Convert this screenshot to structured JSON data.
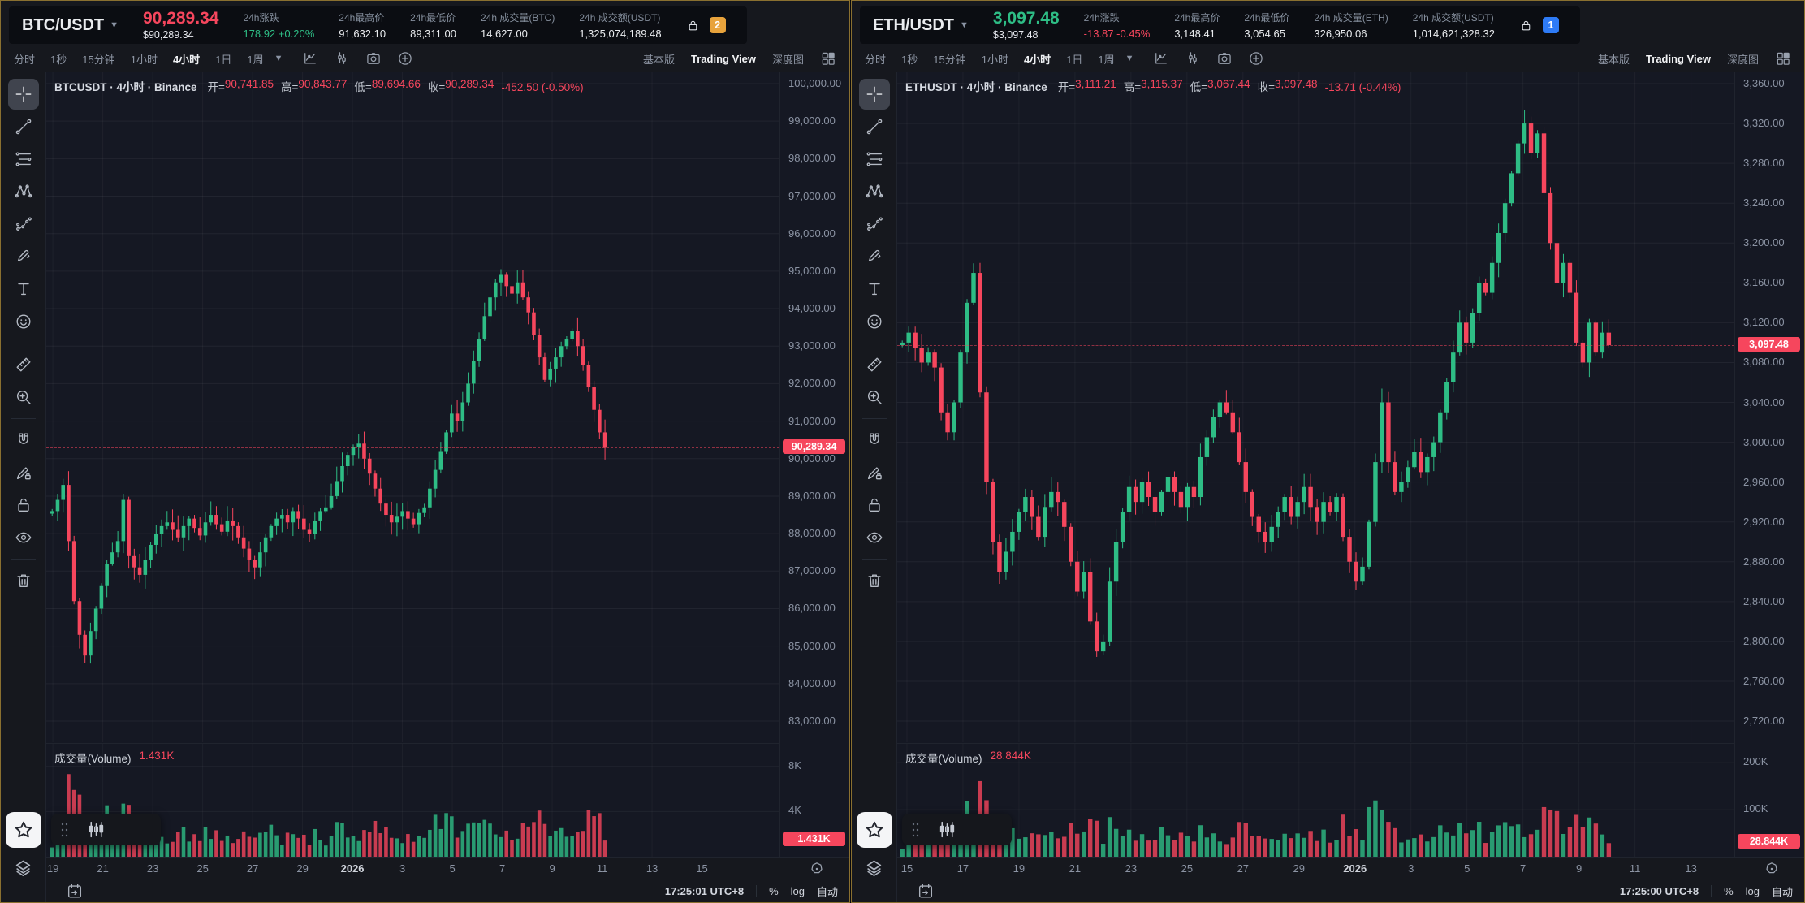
{
  "colors": {
    "up": "#2ebd85",
    "down": "#f6465d",
    "badge_btc": "#e8a33c",
    "badge_eth": "#2e7bf6"
  },
  "panels": [
    {
      "id": "btc",
      "header": {
        "symbol": "BTC/USDT",
        "price": "90,289.34",
        "price_dir": "down",
        "price_usd": "$90,289.34",
        "stats": [
          {
            "label": "24h涨跌",
            "value": "178.92 +0.20%",
            "dir": "up"
          },
          {
            "label": "24h最高价",
            "value": "91,632.10",
            "dir": ""
          },
          {
            "label": "24h最低价",
            "value": "89,311.00",
            "dir": ""
          },
          {
            "label": "24h 成交量(BTC)",
            "value": "14,627.00",
            "dir": ""
          },
          {
            "label": "24h 成交额(USDT)",
            "value": "1,325,074,189.48",
            "dir": ""
          }
        ],
        "badge": {
          "text": "2",
          "color": "#e8a33c"
        }
      },
      "toolbar": {
        "timeframes": [
          "分时",
          "1秒",
          "15分钟",
          "1小时",
          "4小时",
          "1日",
          "1周"
        ],
        "active_timeframe": "4小时",
        "icons": [
          "indicators",
          "candle-style",
          "camera",
          "plus-circle"
        ],
        "view_basic": "基本版",
        "view_tv": "Trading View",
        "view_depth": "深度图",
        "active_view": "Trading View"
      },
      "sidebar": {
        "tools": [
          "crosshair",
          "trend-line",
          "fib-lines",
          "xabcd",
          "forecast",
          "brush",
          "text",
          "emoji",
          "sep",
          "ruler",
          "zoom-in",
          "sep",
          "magnet",
          "pencil-lock",
          "lock-open",
          "eye",
          "sep",
          "trash"
        ],
        "active": "crosshair"
      },
      "legend": {
        "title": "BTCUSDT · 4小时 · Binance",
        "ohlc": [
          {
            "k": "开",
            "v": "90,741.85"
          },
          {
            "k": "高",
            "v": "90,843.77"
          },
          {
            "k": "低",
            "v": "89,694.66"
          },
          {
            "k": "收",
            "v": "90,289.34"
          }
        ],
        "change": "-452.50 (-0.50%)"
      },
      "chart_data": {
        "type": "candlestick",
        "title": "BTCUSDT 4小时 Binance",
        "ylim": [
          83000,
          100000
        ],
        "price_ticks": [
          100000,
          99000,
          98000,
          97000,
          96000,
          95000,
          94000,
          93000,
          92000,
          91000,
          90000,
          89000,
          88000,
          87000,
          86000,
          85000,
          84000,
          83000
        ],
        "current": 90289.34,
        "current_label": "90,289.34",
        "x_start": 0.008,
        "x_end": 0.762,
        "tick_start": 0.009,
        "tick_step": 0.0681,
        "time_ticks": [
          "19",
          "21",
          "23",
          "25",
          "27",
          "29",
          "2026",
          "3",
          "5",
          "7",
          "9",
          "11",
          "13",
          "15"
        ],
        "closes": [
          88600,
          88900,
          89300,
          87800,
          86200,
          85300,
          84750,
          85400,
          86000,
          86600,
          87200,
          87500,
          87800,
          88900,
          87400,
          87100,
          86900,
          87300,
          87700,
          88000,
          88200,
          88300,
          88100,
          87900,
          88200,
          88400,
          88150,
          87950,
          88300,
          88500,
          88250,
          88050,
          88350,
          88200,
          87900,
          87600,
          87300,
          87100,
          87500,
          87900,
          88200,
          88400,
          88500,
          88300,
          88600,
          88400,
          88100,
          88000,
          88350,
          88600,
          88700,
          89000,
          89400,
          89800,
          90100,
          90300,
          90400,
          90000,
          89600,
          89200,
          88800,
          88500,
          88300,
          88450,
          88600,
          88400,
          88250,
          88550,
          88700,
          89200,
          89700,
          90200,
          90700,
          91200,
          91000,
          91500,
          92000,
          92600,
          93200,
          93800,
          94300,
          94700,
          94900,
          94600,
          94400,
          94700,
          94300,
          93900,
          93300,
          92700,
          92100,
          92400,
          92700,
          93000,
          93200,
          93400,
          93000,
          92500,
          91900,
          91300,
          90700,
          90289.34
        ]
      },
      "volume": {
        "label": "成交量(Volume)",
        "value": "1.431K",
        "badge": "1.431K",
        "current": 1431,
        "vmax": 10000,
        "axis": [
          {
            "v": 8000,
            "t": "8K"
          },
          {
            "v": 4000,
            "t": "4K"
          }
        ]
      },
      "bottom_bar": {
        "time": "17:25:01 UTC+8",
        "percent": "%",
        "log": "log",
        "auto": "自动"
      }
    },
    {
      "id": "eth",
      "header": {
        "symbol": "ETH/USDT",
        "price": "3,097.48",
        "price_dir": "up",
        "price_usd": "$3,097.48",
        "stats": [
          {
            "label": "24h涨跌",
            "value": "-13.87 -0.45%",
            "dir": "down"
          },
          {
            "label": "24h最高价",
            "value": "3,148.41",
            "dir": ""
          },
          {
            "label": "24h最低价",
            "value": "3,054.65",
            "dir": ""
          },
          {
            "label": "24h 成交量(ETH)",
            "value": "326,950.06",
            "dir": ""
          },
          {
            "label": "24h 成交额(USDT)",
            "value": "1,014,621,328.32",
            "dir": ""
          }
        ],
        "badge": {
          "text": "1",
          "color": "#2e7bf6"
        }
      },
      "toolbar": {
        "timeframes": [
          "分时",
          "1秒",
          "15分钟",
          "1小时",
          "4小时",
          "1日",
          "1周"
        ],
        "active_timeframe": "4小时",
        "icons": [
          "indicators",
          "candle-style",
          "camera",
          "plus-circle"
        ],
        "view_basic": "基本版",
        "view_tv": "Trading View",
        "view_depth": "深度图",
        "active_view": "Trading View"
      },
      "sidebar": {
        "tools": [
          "crosshair",
          "trend-line",
          "fib-lines",
          "xabcd",
          "forecast",
          "brush",
          "text",
          "emoji",
          "sep",
          "ruler",
          "zoom-in",
          "sep",
          "magnet",
          "pencil-lock",
          "lock-open",
          "eye",
          "sep",
          "trash"
        ],
        "active": "crosshair"
      },
      "legend": {
        "title": "ETHUSDT · 4小时 · Binance",
        "ohlc": [
          {
            "k": "开",
            "v": "3,111.21"
          },
          {
            "k": "高",
            "v": "3,115.37"
          },
          {
            "k": "低",
            "v": "3,067.44"
          },
          {
            "k": "收",
            "v": "3,097.48"
          }
        ],
        "change": "-13.71 (-0.44%)"
      },
      "chart_data": {
        "type": "candlestick",
        "title": "ETHUSDT 4小时 Binance",
        "ylim": [
          2720,
          3360
        ],
        "price_ticks": [
          3360,
          3320,
          3280,
          3240,
          3200,
          3160,
          3120,
          3080,
          3040,
          3000,
          2960,
          2920,
          2880,
          2840,
          2800,
          2760,
          2720
        ],
        "current": 3097.48,
        "current_label": "3,097.48",
        "x_start": 0.006,
        "x_end": 0.85,
        "tick_start": 0.0116,
        "tick_step": 0.0669,
        "time_ticks": [
          "15",
          "17",
          "19",
          "21",
          "23",
          "25",
          "27",
          "29",
          "2026",
          "3",
          "5",
          "7",
          "9",
          "11",
          "13"
        ],
        "closes": [
          3100,
          3110,
          3095,
          3080,
          3090,
          3075,
          3030,
          3010,
          3040,
          3090,
          3140,
          3170,
          3050,
          2960,
          2900,
          2870,
          2890,
          2910,
          2930,
          2945,
          2925,
          2905,
          2935,
          2950,
          2940,
          2915,
          2880,
          2850,
          2870,
          2820,
          2790,
          2800,
          2860,
          2900,
          2930,
          2955,
          2940,
          2960,
          2945,
          2930,
          2950,
          2965,
          2950,
          2935,
          2955,
          2945,
          2985,
          3005,
          3025,
          3040,
          3030,
          3010,
          2980,
          2950,
          2925,
          2910,
          2900,
          2915,
          2930,
          2945,
          2925,
          2940,
          2955,
          2935,
          2920,
          2940,
          2930,
          2945,
          2905,
          2880,
          2860,
          2875,
          2920,
          2980,
          3040,
          2980,
          2950,
          2960,
          2975,
          2990,
          2970,
          2985,
          3000,
          3030,
          3060,
          3090,
          3120,
          3100,
          3130,
          3160,
          3150,
          3180,
          3210,
          3240,
          3270,
          3300,
          3320,
          3290,
          3310,
          3250,
          3200,
          3160,
          3180,
          3150,
          3100,
          3080,
          3120,
          3090,
          3110,
          3097.48
        ]
      },
      "volume": {
        "label": "成交量(Volume)",
        "value": "28.844K",
        "badge": "28.844K",
        "current": 28844,
        "vmax": 240000,
        "axis": [
          {
            "v": 200000,
            "t": "200K"
          },
          {
            "v": 100000,
            "t": "100K"
          }
        ]
      },
      "bottom_bar": {
        "time": "17:25:00 UTC+8",
        "percent": "%",
        "log": "log",
        "auto": "自动"
      }
    }
  ]
}
